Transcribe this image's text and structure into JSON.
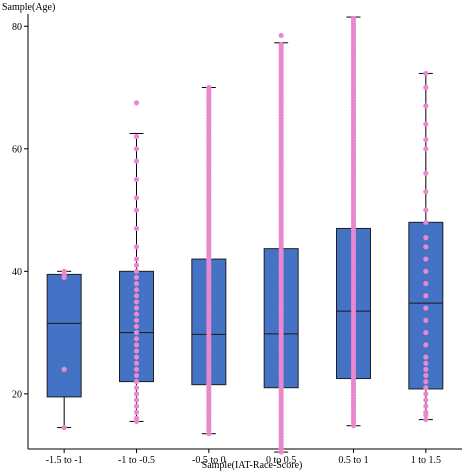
{
  "chart_data": {
    "type": "box",
    "xlabel": "Sample(IAT-Race-Score)",
    "ylabel": "Sample(Age)",
    "ylim": [
      11,
      82
    ],
    "yticks": [
      20,
      40,
      60,
      80
    ],
    "grid": false,
    "categories": [
      "-1.5 to -1",
      "-1 to -0.5",
      "-0.5 to 0",
      "0 to 0.5",
      "0.5 to 1",
      "1 to 1.5"
    ],
    "boxes": [
      {
        "category": "-1.5 to -1",
        "whisker_low": 14.5,
        "q1": 19.5,
        "median": 31.5,
        "q3": 39.5,
        "whisker_high": 40,
        "points": [
          14.5,
          24,
          39,
          39.5,
          40
        ]
      },
      {
        "category": "-1 to -0.5",
        "whisker_low": 15.5,
        "q1": 22,
        "median": 30,
        "q3": 40,
        "whisker_high": 62.5,
        "points": [
          15.5,
          16,
          17,
          18,
          19,
          20,
          21,
          22,
          23,
          24,
          25,
          26,
          27,
          28,
          29,
          30,
          31,
          32,
          33,
          34,
          35,
          36,
          37,
          38,
          39,
          40,
          41,
          42,
          44,
          47,
          50,
          52,
          55,
          58,
          60,
          62,
          67.5
        ]
      },
      {
        "category": "-0.5 to 0",
        "whisker_low": 13.5,
        "q1": 21.5,
        "median": 29.7,
        "q3": 42,
        "whisker_high": 70,
        "dense_range": [
          13.5,
          70
        ]
      },
      {
        "category": "0 to 0.5",
        "whisker_low": 10.5,
        "q1": 21,
        "median": 29.8,
        "q3": 43.7,
        "whisker_high": 77.3,
        "dense_range": [
          10.5,
          77.3
        ],
        "points": [
          78.5
        ]
      },
      {
        "category": "0.5 to 1",
        "whisker_low": 14.8,
        "q1": 22.5,
        "median": 33.5,
        "q3": 47,
        "whisker_high": 81.5,
        "dense_range": [
          14.8,
          81.5
        ]
      },
      {
        "category": "1 to 1.5",
        "whisker_low": 15.8,
        "q1": 20.8,
        "median": 34.8,
        "q3": 48,
        "whisker_high": 72.3,
        "points": [
          15.8,
          16.5,
          17,
          18,
          19,
          20,
          21,
          22,
          23,
          24,
          25,
          26,
          28,
          30,
          32,
          34,
          36,
          38,
          40,
          42,
          44,
          45.5,
          48,
          50,
          53,
          56,
          60,
          61.5,
          64,
          67,
          70,
          72.3
        ]
      }
    ],
    "colors": {
      "box_fill": "#4472c4",
      "box_stroke": "#1f1f1f",
      "point": "#e987cf",
      "whisker": "#000000"
    }
  }
}
